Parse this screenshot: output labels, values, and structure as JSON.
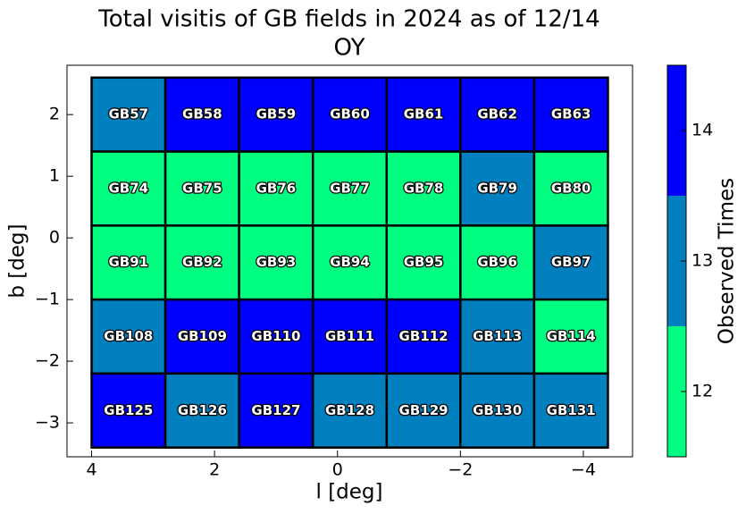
{
  "chart_data": {
    "type": "heatmap",
    "title": "Total visitis of GB fields in 2024 as of 12/14",
    "subtitle": "OY",
    "xlabel": "l [deg]",
    "ylabel": "b [deg]",
    "colorbar_label": "Observed Times",
    "xlim": [
      4.4,
      -4.8
    ],
    "ylim": [
      -3.55,
      2.8
    ],
    "xticks": [
      4,
      2,
      0,
      {
        "value": -2,
        "label": "−2"
      },
      {
        "value": -4,
        "label": "−4"
      }
    ],
    "yticks": [
      2,
      1,
      0,
      {
        "value": -1,
        "label": "−1"
      },
      {
        "value": -2,
        "label": "−2"
      },
      {
        "value": -3,
        "label": "−3"
      }
    ],
    "clim": [
      11.5,
      14.5
    ],
    "cticks": [
      12,
      13,
      14
    ],
    "colors": [
      "#00ff80",
      "#0080bf",
      "#0000ff"
    ],
    "cells": [
      {
        "label": "GB57",
        "l": 3.4,
        "b": 2.0,
        "value": 13
      },
      {
        "label": "GB58",
        "l": 2.2,
        "b": 2.0,
        "value": 14
      },
      {
        "label": "GB59",
        "l": 1.0,
        "b": 2.0,
        "value": 14
      },
      {
        "label": "GB60",
        "l": -0.2,
        "b": 2.0,
        "value": 14
      },
      {
        "label": "GB61",
        "l": -1.4,
        "b": 2.0,
        "value": 14
      },
      {
        "label": "GB62",
        "l": -2.6,
        "b": 2.0,
        "value": 14
      },
      {
        "label": "GB63",
        "l": -3.8,
        "b": 2.0,
        "value": 14
      },
      {
        "label": "GB74",
        "l": 3.4,
        "b": 0.8,
        "value": 12
      },
      {
        "label": "GB75",
        "l": 2.2,
        "b": 0.8,
        "value": 12
      },
      {
        "label": "GB76",
        "l": 1.0,
        "b": 0.8,
        "value": 12
      },
      {
        "label": "GB77",
        "l": -0.2,
        "b": 0.8,
        "value": 12
      },
      {
        "label": "GB78",
        "l": -1.4,
        "b": 0.8,
        "value": 12
      },
      {
        "label": "GB79",
        "l": -2.6,
        "b": 0.8,
        "value": 13
      },
      {
        "label": "GB80",
        "l": -3.8,
        "b": 0.8,
        "value": 12
      },
      {
        "label": "GB91",
        "l": 3.4,
        "b": -0.4,
        "value": 12
      },
      {
        "label": "GB92",
        "l": 2.2,
        "b": -0.4,
        "value": 12
      },
      {
        "label": "GB93",
        "l": 1.0,
        "b": -0.4,
        "value": 12
      },
      {
        "label": "GB94",
        "l": -0.2,
        "b": -0.4,
        "value": 12
      },
      {
        "label": "GB95",
        "l": -1.4,
        "b": -0.4,
        "value": 12
      },
      {
        "label": "GB96",
        "l": -2.6,
        "b": -0.4,
        "value": 12
      },
      {
        "label": "GB97",
        "l": -3.8,
        "b": -0.4,
        "value": 13
      },
      {
        "label": "GB108",
        "l": 3.4,
        "b": -1.6,
        "value": 13
      },
      {
        "label": "GB109",
        "l": 2.2,
        "b": -1.6,
        "value": 14
      },
      {
        "label": "GB110",
        "l": 1.0,
        "b": -1.6,
        "value": 14
      },
      {
        "label": "GB111",
        "l": -0.2,
        "b": -1.6,
        "value": 14
      },
      {
        "label": "GB112",
        "l": -1.4,
        "b": -1.6,
        "value": 14
      },
      {
        "label": "GB113",
        "l": -2.6,
        "b": -1.6,
        "value": 13
      },
      {
        "label": "GB114",
        "l": -3.8,
        "b": -1.6,
        "value": 12
      },
      {
        "label": "GB125",
        "l": 3.4,
        "b": -2.8,
        "value": 14
      },
      {
        "label": "GB126",
        "l": 2.2,
        "b": -2.8,
        "value": 13
      },
      {
        "label": "GB127",
        "l": 1.0,
        "b": -2.8,
        "value": 14
      },
      {
        "label": "GB128",
        "l": -0.2,
        "b": -2.8,
        "value": 13
      },
      {
        "label": "GB129",
        "l": -1.4,
        "b": -2.8,
        "value": 13
      },
      {
        "label": "GB130",
        "l": -2.6,
        "b": -2.8,
        "value": 13
      },
      {
        "label": "GB131",
        "l": -3.8,
        "b": -2.8,
        "value": 13
      }
    ]
  }
}
